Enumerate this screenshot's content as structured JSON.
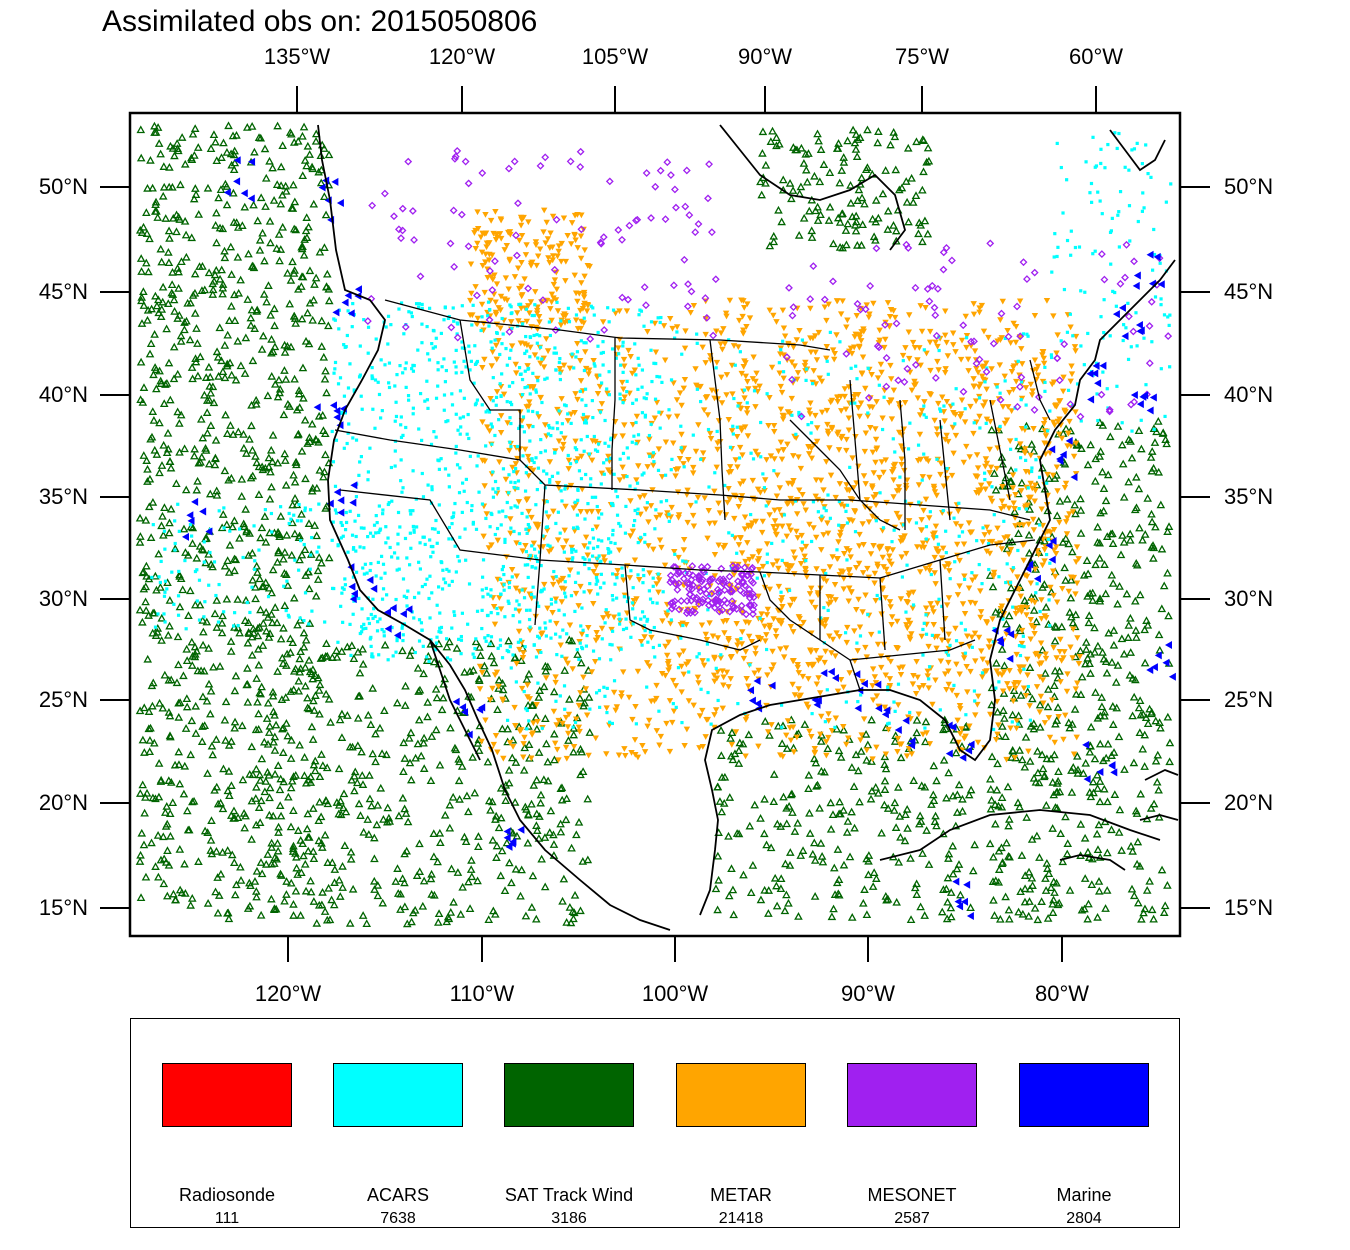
{
  "title": "Assimilated obs on: 2015050806",
  "axes": {
    "top": [
      "135°W",
      "120°W",
      "105°W",
      "90°W",
      "75°W",
      "60°W"
    ],
    "bottom": [
      "120°W",
      "110°W",
      "100°W",
      "90°W",
      "80°W"
    ],
    "left": [
      "50°N",
      "45°N",
      "40°N",
      "35°N",
      "30°N",
      "25°N",
      "20°N",
      "15°N"
    ],
    "right": [
      "50°N",
      "45°N",
      "40°N",
      "35°N",
      "30°N",
      "25°N",
      "20°N",
      "15°N"
    ]
  },
  "legend": [
    {
      "name": "Radiosonde",
      "count": "111",
      "color": "#ff0000"
    },
    {
      "name": "ACARS",
      "count": "7638",
      "color": "#00ffff"
    },
    {
      "name": "SAT Track Wind",
      "count": "3186",
      "color": "#006400"
    },
    {
      "name": "METAR",
      "count": "21418",
      "color": "#ffa500"
    },
    {
      "name": "MESONET",
      "count": "2587",
      "color": "#a020f0"
    },
    {
      "name": "Marine",
      "count": "2804",
      "color": "#0000ff"
    }
  ]
}
